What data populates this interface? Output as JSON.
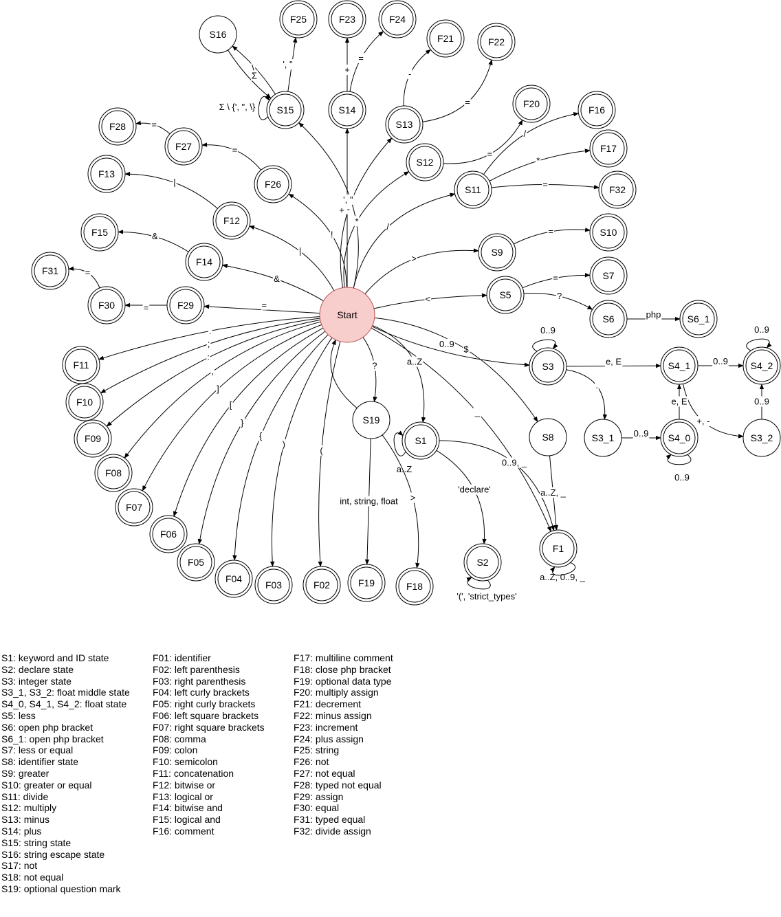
{
  "colors": {
    "start_fill": "#f8cecc",
    "start_stroke": "#b85450",
    "node_fill": "#ffffff",
    "stroke": "#000000"
  },
  "nodes": {
    "start": "Start",
    "S1": "S1",
    "S2": "S2",
    "S3": "S3",
    "S3_1": "S3_1",
    "S3_2": "S3_2",
    "S4_0": "S4_0",
    "S4_1": "S4_1",
    "S4_2": "S4_2",
    "S5": "S5",
    "S6": "S6",
    "S6_1": "S6_1",
    "S7": "S7",
    "S8": "S8",
    "S9": "S9",
    "S10": "S10",
    "S11": "S11",
    "S12": "S12",
    "S13": "S13",
    "S14": "S14",
    "S15": "S15",
    "S16": "S16",
    "S19": "S19",
    "F1": "F1",
    "F02": "F02",
    "F03": "F03",
    "F04": "F04",
    "F05": "F05",
    "F06": "F06",
    "F07": "F07",
    "F08": "F08",
    "F09": "F09",
    "F10": "F10",
    "F11": "F11",
    "F12": "F12",
    "F13": "F13",
    "F14": "F14",
    "F15": "F15",
    "F16": "F16",
    "F17": "F17",
    "F18": "F18",
    "F19": "F19",
    "F20": "F20",
    "F21": "F21",
    "F22": "F22",
    "F23": "F23",
    "F24": "F24",
    "F25": "F25",
    "F26": "F26",
    "F27": "F27",
    "F28": "F28",
    "F29": "F29",
    "F30": "F30",
    "F31": "F31",
    "F32": "F32"
  },
  "edge_labels": {
    "start_F29": "=",
    "F29_F30": "=",
    "F30_F31": "=",
    "start_F14": "&",
    "F14_F15": "&",
    "start_F12": "|",
    "F12_F13": "|",
    "start_F26": "!",
    "F26_F27": "=",
    "F27_F28": "=",
    "start_S15": "', \"",
    "S15_F25": "', \"",
    "S15_S16": "\\",
    "S16_S15": "Σ",
    "S15_self": "Σ \\ {', \", \\}",
    "start_S14": "+",
    "S14_F23": "+",
    "S14_F24": "=",
    "start_S13": "-",
    "S13_F21": "-",
    "S13_F22": "=",
    "start_S12": "*",
    "S12_F20": "=",
    "start_S11": "/",
    "S11_F16": "/",
    "S11_F17": "*",
    "S11_F32": "=",
    "start_S9": ">",
    "S9_S10": "=",
    "start_S5": "<",
    "S5_S7": "=",
    "S5_S6": "?",
    "S6_S6_1": "php",
    "start_S3": "0..9",
    "S3_self": "0..9",
    "S3_S4_1": "e, E",
    "S3_S3_1": ".",
    "S4_1_S4_2": "0..9",
    "S4_2_self": "0..9",
    "S4_1_S3_2": "+, -",
    "S3_2_S4_2": "0..9",
    "S3_1_S4_0": "0..9",
    "S4_0_self": "0..9",
    "S4_0_S4_1": "e, E",
    "start_S8": "$",
    "S8_F1": "a..Z, _",
    "start_F1": "_",
    "start_S1": "a..Z",
    "S1_self": "a..Z",
    "S1_F1": "0..9, _",
    "S1_S2": "'declare'",
    "S2_self": "'(', 'strict_types'",
    "F1_self": "a..Z, 0..9, _",
    "start_S19": "?",
    "S19_F19": "int, string, float",
    "S19_F18": ">",
    "start_F11": ".",
    "start_F10": ";",
    "start_F09": ":",
    "start_F08": ",",
    "start_F07": "]",
    "start_F06": "[",
    "start_F05": "}",
    "start_F04": "{",
    "start_F03": ")",
    "start_F02": "("
  },
  "legend": {
    "col1": [
      "S1: keyword and ID state",
      "S2: declare state",
      "S3: integer state",
      "S3_1, S3_2: float middle state",
      "S4_0, S4_1, S4_2: float state",
      "S5: less",
      "S6: open php bracket",
      "S6_1: open php bracket",
      "S7: less or equal",
      "S8: identifier state",
      "S9: greater",
      "S10: greater or equal",
      "S11: divide",
      "S12: multiply",
      "S13: minus",
      "S14: plus",
      "S15: string state",
      "S16: string escape state",
      "S17: not",
      "S18: not equal",
      "S19: optional question mark"
    ],
    "col2": [
      "F01: identifier",
      "F02: left parenthesis",
      "F03: right parenthesis",
      "F04: left curly brackets",
      "F05: right curly brackets",
      "F06: left square brackets",
      "F07: right square brackets",
      "F08: comma",
      "F09: colon",
      "F10: semicolon",
      "F11: concatenation",
      "F12: bitwise or",
      "F13: logical or",
      "F14: bitwise and",
      "F15: logical and",
      "F16: comment"
    ],
    "col3": [
      "F17: multiline comment",
      "F18: close php bracket",
      "F19: optional data type",
      "F20: multiply assign",
      "F21: decrement",
      "F22: minus assign",
      "F23: increment",
      "F24: plus assign",
      "F25: string",
      "F26: not",
      "F27: not equal",
      "F28: typed not equal",
      "F29: assign",
      "F30: equal",
      "F31: typed equal",
      "F32: divide assign"
    ]
  }
}
